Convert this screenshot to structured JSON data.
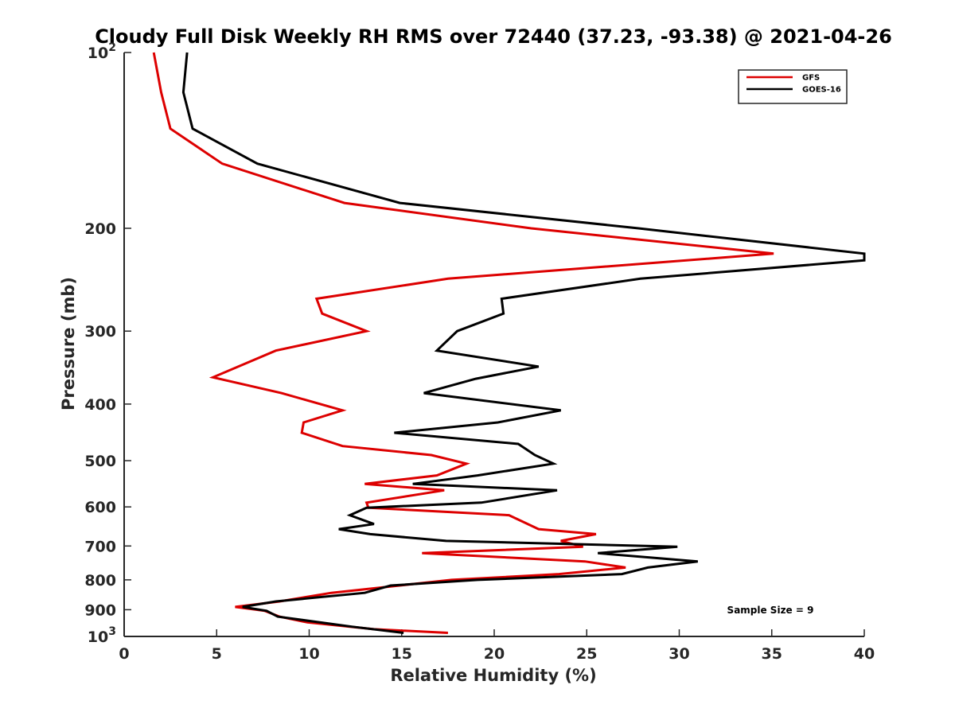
{
  "chart_data": {
    "type": "line",
    "title": "Cloudy Full Disk Weekly RH RMS over 72440 (37.23, -93.38) @ 2021-04-26",
    "xlabel": "Relative Humidity (%)",
    "ylabel": "Pressure (mb)",
    "xlim": [
      0,
      40
    ],
    "ylim": [
      100,
      1000
    ],
    "yscale": "log",
    "yreversed": true,
    "xticks": [
      0,
      5,
      10,
      15,
      20,
      25,
      30,
      35,
      40
    ],
    "xtick_labels": [
      "0",
      "5",
      "10",
      "15",
      "20",
      "25",
      "30",
      "35",
      "40"
    ],
    "yticks": [
      100,
      200,
      300,
      400,
      500,
      600,
      700,
      800,
      900,
      1000
    ],
    "ytick_labels": [
      {
        "base": "10",
        "exp": "2"
      },
      {
        "text": "200"
      },
      {
        "text": "300"
      },
      {
        "text": "400"
      },
      {
        "text": "500"
      },
      {
        "text": "600"
      },
      {
        "text": "700"
      },
      {
        "text": "800"
      },
      {
        "text": "900"
      },
      {
        "base": "10",
        "exp": "3"
      }
    ],
    "legend_position": "top-right",
    "grid": false,
    "annotation": "Sample Size = 9",
    "series": [
      {
        "name": "GFS",
        "color": "#dd0000",
        "points": [
          [
            1.6,
            100
          ],
          [
            2.0,
            117
          ],
          [
            2.5,
            135
          ],
          [
            5.3,
            155
          ],
          [
            11.9,
            181
          ],
          [
            22.0,
            200
          ],
          [
            35.1,
            221
          ],
          [
            17.5,
            244
          ],
          [
            10.4,
            264
          ],
          [
            10.7,
            280
          ],
          [
            13.1,
            300
          ],
          [
            8.2,
            324
          ],
          [
            4.8,
            360
          ],
          [
            8.5,
            383
          ],
          [
            11.8,
            410
          ],
          [
            9.7,
            430
          ],
          [
            9.6,
            448
          ],
          [
            11.8,
            472
          ],
          [
            16.6,
            489
          ],
          [
            18.5,
            506
          ],
          [
            16.9,
            530
          ],
          [
            13.0,
            548
          ],
          [
            17.3,
            562
          ],
          [
            13.1,
            590
          ],
          [
            13.2,
            602
          ],
          [
            20.8,
            620
          ],
          [
            22.4,
            655
          ],
          [
            25.5,
            668
          ],
          [
            23.6,
            686
          ],
          [
            24.8,
            702
          ],
          [
            16.1,
            720
          ],
          [
            24.9,
            744
          ],
          [
            27.1,
            762
          ],
          [
            23.5,
            782
          ],
          [
            17.7,
            800
          ],
          [
            11.2,
            842
          ],
          [
            8.4,
            871
          ],
          [
            6.0,
            890
          ],
          [
            7.6,
            904
          ],
          [
            8.4,
            925
          ],
          [
            9.9,
            946
          ],
          [
            13.5,
            972
          ],
          [
            17.5,
            986
          ]
        ]
      },
      {
        "name": "GOES-16",
        "color": "#000000",
        "points": [
          [
            3.4,
            100
          ],
          [
            3.2,
            117
          ],
          [
            3.7,
            135
          ],
          [
            7.2,
            155
          ],
          [
            14.9,
            181
          ],
          [
            27.8,
            200
          ],
          [
            40.0,
            221
          ],
          [
            40.0,
            227
          ],
          [
            27.9,
            244
          ],
          [
            20.4,
            264
          ],
          [
            20.5,
            280
          ],
          [
            18.0,
            300
          ],
          [
            16.9,
            324
          ],
          [
            22.4,
            345
          ],
          [
            19.0,
            362
          ],
          [
            16.2,
            383
          ],
          [
            23.6,
            410
          ],
          [
            20.2,
            430
          ],
          [
            14.6,
            448
          ],
          [
            21.3,
            468
          ],
          [
            22.2,
            489
          ],
          [
            23.2,
            506
          ],
          [
            19.1,
            530
          ],
          [
            15.6,
            548
          ],
          [
            23.4,
            562
          ],
          [
            19.3,
            590
          ],
          [
            13.1,
            602
          ],
          [
            12.2,
            620
          ],
          [
            13.5,
            642
          ],
          [
            11.6,
            655
          ],
          [
            13.3,
            668
          ],
          [
            17.4,
            686
          ],
          [
            29.9,
            702
          ],
          [
            25.6,
            720
          ],
          [
            31.0,
            744
          ],
          [
            28.3,
            762
          ],
          [
            26.9,
            782
          ],
          [
            19.1,
            800
          ],
          [
            14.4,
            818
          ],
          [
            13.0,
            842
          ],
          [
            8.2,
            871
          ],
          [
            6.4,
            890
          ],
          [
            7.7,
            904
          ],
          [
            8.3,
            925
          ],
          [
            12.3,
            962
          ],
          [
            15.1,
            986
          ]
        ]
      }
    ]
  }
}
